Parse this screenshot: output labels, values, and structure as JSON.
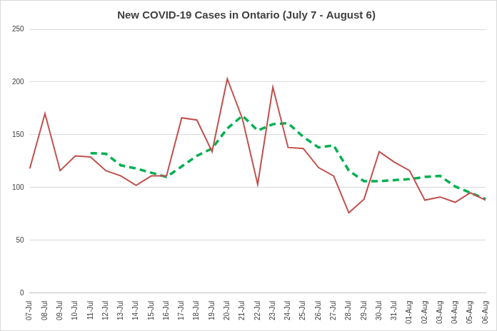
{
  "chart_data": {
    "type": "line",
    "title": "New COVID-19 Cases in Ontario (July 7 - August 6)",
    "categories": [
      "07-Jul",
      "08-Jul",
      "09-Jul",
      "10-Jul",
      "11-Jul",
      "12-Jul",
      "13-Jul",
      "14-Jul",
      "15-Jul",
      "16-Jul",
      "17-Jul",
      "18-Jul",
      "19-Jul",
      "20-Jul",
      "21-Jul",
      "22-Jul",
      "23-Jul",
      "24-Jul",
      "25-Jul",
      "26-Jul",
      "27-Jul",
      "28-Jul",
      "29-Jul",
      "30-Jul",
      "31-Jul",
      "01-Aug",
      "02-Aug",
      "03-Aug",
      "04-Aug",
      "05-Aug",
      "06-Aug"
    ],
    "series": [
      {
        "color": "#c0504d",
        "line_style": "solid",
        "marker": "none",
        "values": [
          118,
          170,
          116,
          130,
          129,
          116,
          111,
          102,
          111,
          111,
          166,
          164,
          134,
          203,
          165,
          103,
          195,
          138,
          137,
          119,
          111,
          76,
          89,
          134,
          124,
          116,
          88,
          91,
          86,
          95,
          88
        ]
      },
      {
        "color": "#00b050",
        "line_style": "dashed",
        "marker": "none",
        "values": [
          null,
          null,
          null,
          null,
          132.6,
          132,
          121,
          118,
          114,
          110,
          120,
          130,
          137,
          156,
          168,
          154,
          160,
          161,
          148,
          138,
          140,
          116,
          106,
          106,
          107,
          108,
          110,
          111,
          101,
          95,
          89
        ]
      }
    ],
    "ylim": [
      0,
      250
    ],
    "yticks": [
      0,
      50,
      100,
      150,
      200,
      250
    ],
    "grid": true
  }
}
